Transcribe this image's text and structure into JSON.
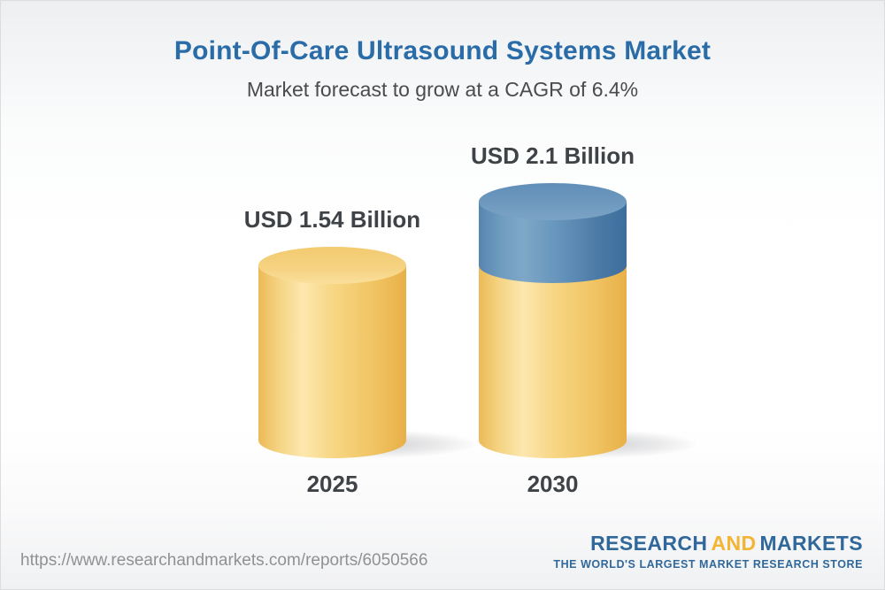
{
  "page": {
    "title": "Point-Of-Care Ultrasound Systems Market",
    "subtitle": "Market forecast to grow at a CAGR of 6.4%"
  },
  "chart_data": {
    "type": "bar",
    "variant": "3d-cylinder-stacked",
    "categories": [
      "2025",
      "2030"
    ],
    "totals": [
      1.54,
      2.1
    ],
    "series": [
      {
        "name": "base-segment",
        "color": "#f1c465",
        "values": [
          1.54,
          1.54
        ]
      },
      {
        "name": "growth-segment",
        "color": "#527ea9",
        "values": [
          0,
          0.56
        ]
      }
    ],
    "value_labels": [
      "USD 1.54 Billion",
      "USD 2.1 Billion"
    ],
    "unit": "USD Billion",
    "cagr_pct": 6.4,
    "ylim": [
      0,
      2.3
    ],
    "axes_hidden": true,
    "legend": false
  },
  "footer": {
    "source_url": "https://www.researchandmarkets.com/reports/6050566",
    "logo": {
      "word1": "RESEARCH",
      "word2": "AND",
      "word3": "MARKETS",
      "tagline": "THE WORLD'S LARGEST MARKET RESEARCH STORE"
    }
  },
  "colors": {
    "title_blue": "#2a6ca8",
    "subtitle_gray": "#4a4b4d",
    "label_dark": "#3f4347",
    "url_gray": "#8f9193",
    "logo_blue": "#31689b",
    "logo_gold": "#f3b534",
    "bar_gold": "#f1c465",
    "bar_blue": "#527ea9"
  }
}
